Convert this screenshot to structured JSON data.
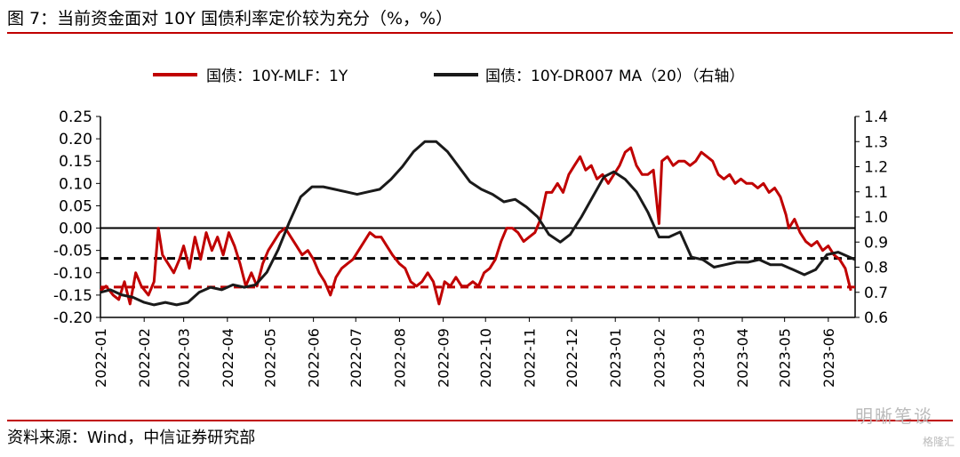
{
  "header": {
    "title": "图 7：当前资金面对 10Y 国债利率定价较为充分（%，%）"
  },
  "footer": {
    "source": "资料来源：Wind，中信证券研究部",
    "watermark": "明晰笔谈",
    "watermark_small": "格隆汇"
  },
  "colors": {
    "series1": "#c00000",
    "series2": "#1a1a1a",
    "rule": "#c00000"
  },
  "chart_data": {
    "type": "line",
    "legend_position": "top",
    "x_ticks": [
      "2022-01",
      "2022-02",
      "2022-03",
      "2022-04",
      "2022-05",
      "2022-06",
      "2022-07",
      "2022-08",
      "2022-09",
      "2022-10",
      "2022-11",
      "2022-12",
      "2023-01",
      "2023-02",
      "2023-03",
      "2023-04",
      "2023-05",
      "2023-06"
    ],
    "left_axis": {
      "range": [
        -0.2,
        0.25
      ],
      "ticks": [
        "-0.20",
        "-0.15",
        "-0.10",
        "-0.05",
        "0.00",
        "0.05",
        "0.10",
        "0.15",
        "0.20",
        "0.25"
      ]
    },
    "right_axis": {
      "range": [
        0.6,
        1.4
      ],
      "ticks": [
        "0.6",
        "0.7",
        "0.8",
        "0.9",
        "1.0",
        "1.1",
        "1.2",
        "1.3",
        "1.4"
      ]
    },
    "reference_lines": [
      {
        "axis": "left",
        "value": 0.0,
        "style": "solid",
        "color": "#000000"
      },
      {
        "axis": "right",
        "value": 0.835,
        "style": "dashed",
        "color": "#000000"
      },
      {
        "axis": "left",
        "value": -0.132,
        "style": "dashed",
        "color": "#c00000"
      }
    ],
    "series": [
      {
        "name": "国债：10Y-MLF：1Y",
        "axis": "left",
        "color": "#c00000",
        "points": [
          [
            "2022-01-01",
            -0.14
          ],
          [
            "2022-01-05",
            -0.13
          ],
          [
            "2022-01-10",
            -0.15
          ],
          [
            "2022-01-14",
            -0.16
          ],
          [
            "2022-01-18",
            -0.12
          ],
          [
            "2022-01-22",
            -0.17
          ],
          [
            "2022-01-26",
            -0.1
          ],
          [
            "2022-01-30",
            -0.13
          ],
          [
            "2022-02-04",
            -0.15
          ],
          [
            "2022-02-08",
            -0.12
          ],
          [
            "2022-02-11",
            0.0
          ],
          [
            "2022-02-14",
            -0.06
          ],
          [
            "2022-02-18",
            -0.08
          ],
          [
            "2022-02-22",
            -0.1
          ],
          [
            "2022-02-26",
            -0.07
          ],
          [
            "2022-03-01",
            -0.04
          ],
          [
            "2022-03-05",
            -0.09
          ],
          [
            "2022-03-09",
            -0.02
          ],
          [
            "2022-03-13",
            -0.07
          ],
          [
            "2022-03-17",
            -0.01
          ],
          [
            "2022-03-21",
            -0.05
          ],
          [
            "2022-03-25",
            -0.02
          ],
          [
            "2022-03-29",
            -0.06
          ],
          [
            "2022-04-02",
            -0.01
          ],
          [
            "2022-04-06",
            -0.04
          ],
          [
            "2022-04-10",
            -0.08
          ],
          [
            "2022-04-14",
            -0.13
          ],
          [
            "2022-04-18",
            -0.1
          ],
          [
            "2022-04-22",
            -0.13
          ],
          [
            "2022-04-26",
            -0.08
          ],
          [
            "2022-04-30",
            -0.05
          ],
          [
            "2022-05-04",
            -0.03
          ],
          [
            "2022-05-08",
            -0.01
          ],
          [
            "2022-05-12",
            0.0
          ],
          [
            "2022-05-16",
            -0.02
          ],
          [
            "2022-05-20",
            -0.04
          ],
          [
            "2022-05-24",
            -0.06
          ],
          [
            "2022-05-28",
            -0.05
          ],
          [
            "2022-06-01",
            -0.07
          ],
          [
            "2022-06-05",
            -0.1
          ],
          [
            "2022-06-09",
            -0.12
          ],
          [
            "2022-06-13",
            -0.15
          ],
          [
            "2022-06-17",
            -0.11
          ],
          [
            "2022-06-21",
            -0.09
          ],
          [
            "2022-06-25",
            -0.08
          ],
          [
            "2022-06-29",
            -0.07
          ],
          [
            "2022-07-03",
            -0.05
          ],
          [
            "2022-07-07",
            -0.03
          ],
          [
            "2022-07-11",
            -0.01
          ],
          [
            "2022-07-15",
            -0.02
          ],
          [
            "2022-07-19",
            -0.02
          ],
          [
            "2022-07-23",
            -0.04
          ],
          [
            "2022-07-27",
            -0.06
          ],
          [
            "2022-08-01",
            -0.08
          ],
          [
            "2022-08-05",
            -0.09
          ],
          [
            "2022-08-09",
            -0.12
          ],
          [
            "2022-08-13",
            -0.13
          ],
          [
            "2022-08-17",
            -0.12
          ],
          [
            "2022-08-21",
            -0.1
          ],
          [
            "2022-08-25",
            -0.12
          ],
          [
            "2022-08-29",
            -0.17
          ],
          [
            "2022-09-02",
            -0.12
          ],
          [
            "2022-09-06",
            -0.13
          ],
          [
            "2022-09-10",
            -0.11
          ],
          [
            "2022-09-14",
            -0.13
          ],
          [
            "2022-09-18",
            -0.13
          ],
          [
            "2022-09-22",
            -0.12
          ],
          [
            "2022-09-26",
            -0.13
          ],
          [
            "2022-09-30",
            -0.1
          ],
          [
            "2022-10-04",
            -0.09
          ],
          [
            "2022-10-08",
            -0.07
          ],
          [
            "2022-10-12",
            -0.03
          ],
          [
            "2022-10-16",
            0.0
          ],
          [
            "2022-10-20",
            0.0
          ],
          [
            "2022-10-24",
            -0.01
          ],
          [
            "2022-10-28",
            -0.03
          ],
          [
            "2022-11-01",
            -0.02
          ],
          [
            "2022-11-05",
            -0.01
          ],
          [
            "2022-11-09",
            0.02
          ],
          [
            "2022-11-13",
            0.08
          ],
          [
            "2022-11-17",
            0.08
          ],
          [
            "2022-11-21",
            0.1
          ],
          [
            "2022-11-25",
            0.08
          ],
          [
            "2022-11-29",
            0.12
          ],
          [
            "2022-12-03",
            0.14
          ],
          [
            "2022-12-07",
            0.16
          ],
          [
            "2022-12-11",
            0.13
          ],
          [
            "2022-12-15",
            0.14
          ],
          [
            "2022-12-19",
            0.11
          ],
          [
            "2022-12-23",
            0.12
          ],
          [
            "2022-12-27",
            0.1
          ],
          [
            "2022-12-31",
            0.12
          ],
          [
            "2023-01-04",
            0.14
          ],
          [
            "2023-01-08",
            0.17
          ],
          [
            "2023-01-12",
            0.18
          ],
          [
            "2023-01-16",
            0.14
          ],
          [
            "2023-01-20",
            0.12
          ],
          [
            "2023-01-24",
            0.12
          ],
          [
            "2023-01-28",
            0.13
          ],
          [
            "2023-02-01",
            0.01
          ],
          [
            "2023-02-03",
            0.15
          ],
          [
            "2023-02-07",
            0.16
          ],
          [
            "2023-02-11",
            0.14
          ],
          [
            "2023-02-15",
            0.15
          ],
          [
            "2023-02-19",
            0.15
          ],
          [
            "2023-02-23",
            0.14
          ],
          [
            "2023-02-27",
            0.15
          ],
          [
            "2023-03-03",
            0.17
          ],
          [
            "2023-03-07",
            0.16
          ],
          [
            "2023-03-11",
            0.15
          ],
          [
            "2023-03-15",
            0.12
          ],
          [
            "2023-03-19",
            0.11
          ],
          [
            "2023-03-23",
            0.12
          ],
          [
            "2023-03-27",
            0.1
          ],
          [
            "2023-03-31",
            0.11
          ],
          [
            "2023-04-04",
            0.1
          ],
          [
            "2023-04-08",
            0.1
          ],
          [
            "2023-04-12",
            0.09
          ],
          [
            "2023-04-16",
            0.1
          ],
          [
            "2023-04-20",
            0.08
          ],
          [
            "2023-04-24",
            0.09
          ],
          [
            "2023-04-28",
            0.07
          ],
          [
            "2023-05-02",
            0.03
          ],
          [
            "2023-05-04",
            0.0
          ],
          [
            "2023-05-08",
            0.02
          ],
          [
            "2023-05-12",
            -0.01
          ],
          [
            "2023-05-16",
            -0.03
          ],
          [
            "2023-05-20",
            -0.04
          ],
          [
            "2023-05-24",
            -0.03
          ],
          [
            "2023-05-28",
            -0.05
          ],
          [
            "2023-06-01",
            -0.04
          ],
          [
            "2023-06-05",
            -0.06
          ],
          [
            "2023-06-09",
            -0.07
          ],
          [
            "2023-06-13",
            -0.09
          ],
          [
            "2023-06-17",
            -0.14
          ]
        ]
      },
      {
        "name": "国债：10Y-DR007 MA（20）（右轴）",
        "axis": "right",
        "color": "#1a1a1a",
        "points": [
          [
            "2022-01-01",
            0.7
          ],
          [
            "2022-01-08",
            0.71
          ],
          [
            "2022-01-16",
            0.69
          ],
          [
            "2022-01-24",
            0.68
          ],
          [
            "2022-02-01",
            0.66
          ],
          [
            "2022-02-08",
            0.65
          ],
          [
            "2022-02-16",
            0.66
          ],
          [
            "2022-02-24",
            0.65
          ],
          [
            "2022-03-04",
            0.66
          ],
          [
            "2022-03-12",
            0.7
          ],
          [
            "2022-03-20",
            0.72
          ],
          [
            "2022-03-28",
            0.71
          ],
          [
            "2022-04-05",
            0.73
          ],
          [
            "2022-04-13",
            0.72
          ],
          [
            "2022-04-21",
            0.73
          ],
          [
            "2022-04-29",
            0.78
          ],
          [
            "2022-05-07",
            0.87
          ],
          [
            "2022-05-15",
            0.98
          ],
          [
            "2022-05-23",
            1.08
          ],
          [
            "2022-05-31",
            1.12
          ],
          [
            "2022-06-08",
            1.12
          ],
          [
            "2022-06-16",
            1.11
          ],
          [
            "2022-06-24",
            1.1
          ],
          [
            "2022-07-02",
            1.09
          ],
          [
            "2022-07-10",
            1.1
          ],
          [
            "2022-07-18",
            1.11
          ],
          [
            "2022-07-26",
            1.15
          ],
          [
            "2022-08-03",
            1.2
          ],
          [
            "2022-08-11",
            1.26
          ],
          [
            "2022-08-19",
            1.3
          ],
          [
            "2022-08-27",
            1.3
          ],
          [
            "2022-09-04",
            1.26
          ],
          [
            "2022-09-12",
            1.2
          ],
          [
            "2022-09-20",
            1.14
          ],
          [
            "2022-09-28",
            1.11
          ],
          [
            "2022-10-06",
            1.09
          ],
          [
            "2022-10-14",
            1.06
          ],
          [
            "2022-10-22",
            1.07
          ],
          [
            "2022-10-30",
            1.04
          ],
          [
            "2022-11-07",
            1.0
          ],
          [
            "2022-11-15",
            0.93
          ],
          [
            "2022-11-23",
            0.9
          ],
          [
            "2022-11-30",
            0.93
          ],
          [
            "2022-12-08",
            1.0
          ],
          [
            "2022-12-16",
            1.08
          ],
          [
            "2022-12-24",
            1.16
          ],
          [
            "2022-12-31",
            1.18
          ],
          [
            "2023-01-08",
            1.15
          ],
          [
            "2023-01-16",
            1.1
          ],
          [
            "2023-01-24",
            1.02
          ],
          [
            "2023-02-01",
            0.92
          ],
          [
            "2023-02-08",
            0.92
          ],
          [
            "2023-02-16",
            0.94
          ],
          [
            "2023-02-24",
            0.84
          ],
          [
            "2023-03-04",
            0.83
          ],
          [
            "2023-03-12",
            0.8
          ],
          [
            "2023-03-20",
            0.81
          ],
          [
            "2023-03-28",
            0.82
          ],
          [
            "2023-04-05",
            0.82
          ],
          [
            "2023-04-13",
            0.83
          ],
          [
            "2023-04-21",
            0.81
          ],
          [
            "2023-04-29",
            0.81
          ],
          [
            "2023-05-07",
            0.79
          ],
          [
            "2023-05-15",
            0.77
          ],
          [
            "2023-05-23",
            0.79
          ],
          [
            "2023-05-31",
            0.85
          ],
          [
            "2023-06-08",
            0.86
          ],
          [
            "2023-06-16",
            0.84
          ],
          [
            "2023-06-20",
            0.83
          ]
        ]
      }
    ]
  }
}
